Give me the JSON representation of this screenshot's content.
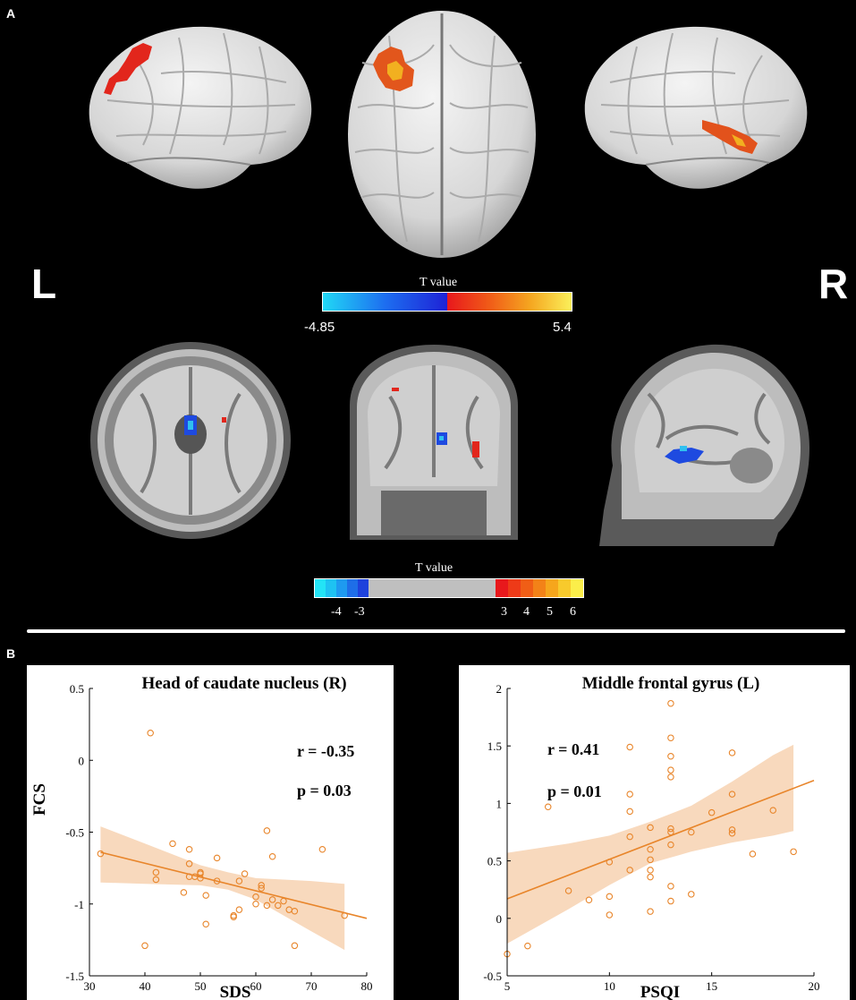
{
  "panel_a": {
    "label": "A",
    "left_label": "L",
    "right_label": "R",
    "colorbar_top": {
      "title": "T value",
      "min_label": "-4.85",
      "max_label": "5.4"
    },
    "colorbar_bottom": {
      "title": "T value",
      "ticks": [
        "-4",
        "-3",
        "3",
        "4",
        "5",
        "6"
      ]
    }
  },
  "panel_b": {
    "label": "B"
  },
  "colors": {
    "marker": "#e8852a",
    "band": "#f8d9bd",
    "axes": "#000000"
  },
  "chart_data": [
    {
      "type": "scatter",
      "title": "Head of caudate nucleus (R)",
      "xlabel": "SDS",
      "ylabel": "FCS",
      "xlim": [
        30,
        80
      ],
      "ylim": [
        -1.5,
        0.5
      ],
      "xticks": [
        30,
        40,
        50,
        60,
        70,
        80
      ],
      "yticks": [
        -1.5,
        -1,
        -0.5,
        0,
        0.5
      ],
      "annotations": [
        "r = -0.35",
        "p = 0.03"
      ],
      "fit": {
        "x": [
          32,
          80
        ],
        "y": [
          -0.64,
          -1.1
        ]
      },
      "band": {
        "x": [
          32,
          40,
          50,
          55,
          60,
          70,
          76
        ],
        "upper": [
          -0.46,
          -0.58,
          -0.73,
          -0.78,
          -0.82,
          -0.84,
          -0.86
        ],
        "lower": [
          -0.85,
          -0.86,
          -0.87,
          -0.9,
          -0.97,
          -1.19,
          -1.32
        ]
      },
      "x": [
        32,
        40,
        41,
        42,
        42,
        45,
        47,
        48,
        48,
        48,
        49,
        50,
        50,
        50,
        51,
        51,
        53,
        53,
        56,
        56,
        57,
        57,
        58,
        60,
        60,
        61,
        61,
        62,
        62,
        63,
        63,
        64,
        65,
        66,
        67,
        67,
        72,
        76
      ],
      "y": [
        -0.65,
        -1.29,
        0.19,
        -0.78,
        -0.83,
        -0.58,
        -0.92,
        -0.62,
        -0.72,
        -0.81,
        -0.81,
        -0.78,
        -0.79,
        -0.82,
        -0.94,
        -1.14,
        -0.68,
        -0.84,
        -1.09,
        -1.08,
        -1.04,
        -0.84,
        -0.79,
        -0.95,
        -1.0,
        -0.87,
        -0.89,
        -0.49,
        -1.01,
        -0.67,
        -0.97,
        -1.01,
        -0.98,
        -1.04,
        -1.05,
        -1.29,
        -0.62,
        -1.08
      ]
    },
    {
      "type": "scatter",
      "title": "Middle frontal gyrus (L)",
      "xlabel": "PSQI",
      "ylabel": "",
      "xlim": [
        5,
        20
      ],
      "ylim": [
        -0.5,
        2
      ],
      "xticks": [
        5,
        10,
        15,
        20
      ],
      "yticks": [
        -0.5,
        0,
        0.5,
        1,
        1.5,
        2
      ],
      "annotations": [
        "r = 0.41",
        "p = 0.01"
      ],
      "fit": {
        "x": [
          5,
          20
        ],
        "y": [
          0.17,
          1.2
        ]
      },
      "band": {
        "x": [
          5,
          8,
          10,
          12,
          14,
          16,
          18,
          19
        ],
        "upper": [
          0.57,
          0.65,
          0.72,
          0.84,
          0.98,
          1.19,
          1.42,
          1.51
        ],
        "lower": [
          -0.22,
          0.08,
          0.29,
          0.48,
          0.58,
          0.66,
          0.72,
          0.76
        ]
      },
      "x": [
        5,
        6,
        7,
        8,
        9,
        10,
        10,
        10,
        11,
        11,
        11,
        11,
        11,
        12,
        12,
        12,
        12,
        12,
        12,
        13,
        13,
        13,
        13,
        13,
        13,
        13,
        13,
        13,
        13,
        14,
        14,
        15,
        16,
        16,
        16,
        16,
        17,
        18,
        19
      ],
      "y": [
        -0.31,
        -0.24,
        0.97,
        0.24,
        0.16,
        0.49,
        0.19,
        0.03,
        1.49,
        1.08,
        0.93,
        0.71,
        0.42,
        0.79,
        0.51,
        0.42,
        0.36,
        0.06,
        0.6,
        1.87,
        1.57,
        1.41,
        1.29,
        1.23,
        0.78,
        0.64,
        0.28,
        0.15,
        0.75,
        0.75,
        0.21,
        0.92,
        1.44,
        1.08,
        0.77,
        0.74,
        0.56,
        0.94,
        0.58
      ]
    }
  ]
}
